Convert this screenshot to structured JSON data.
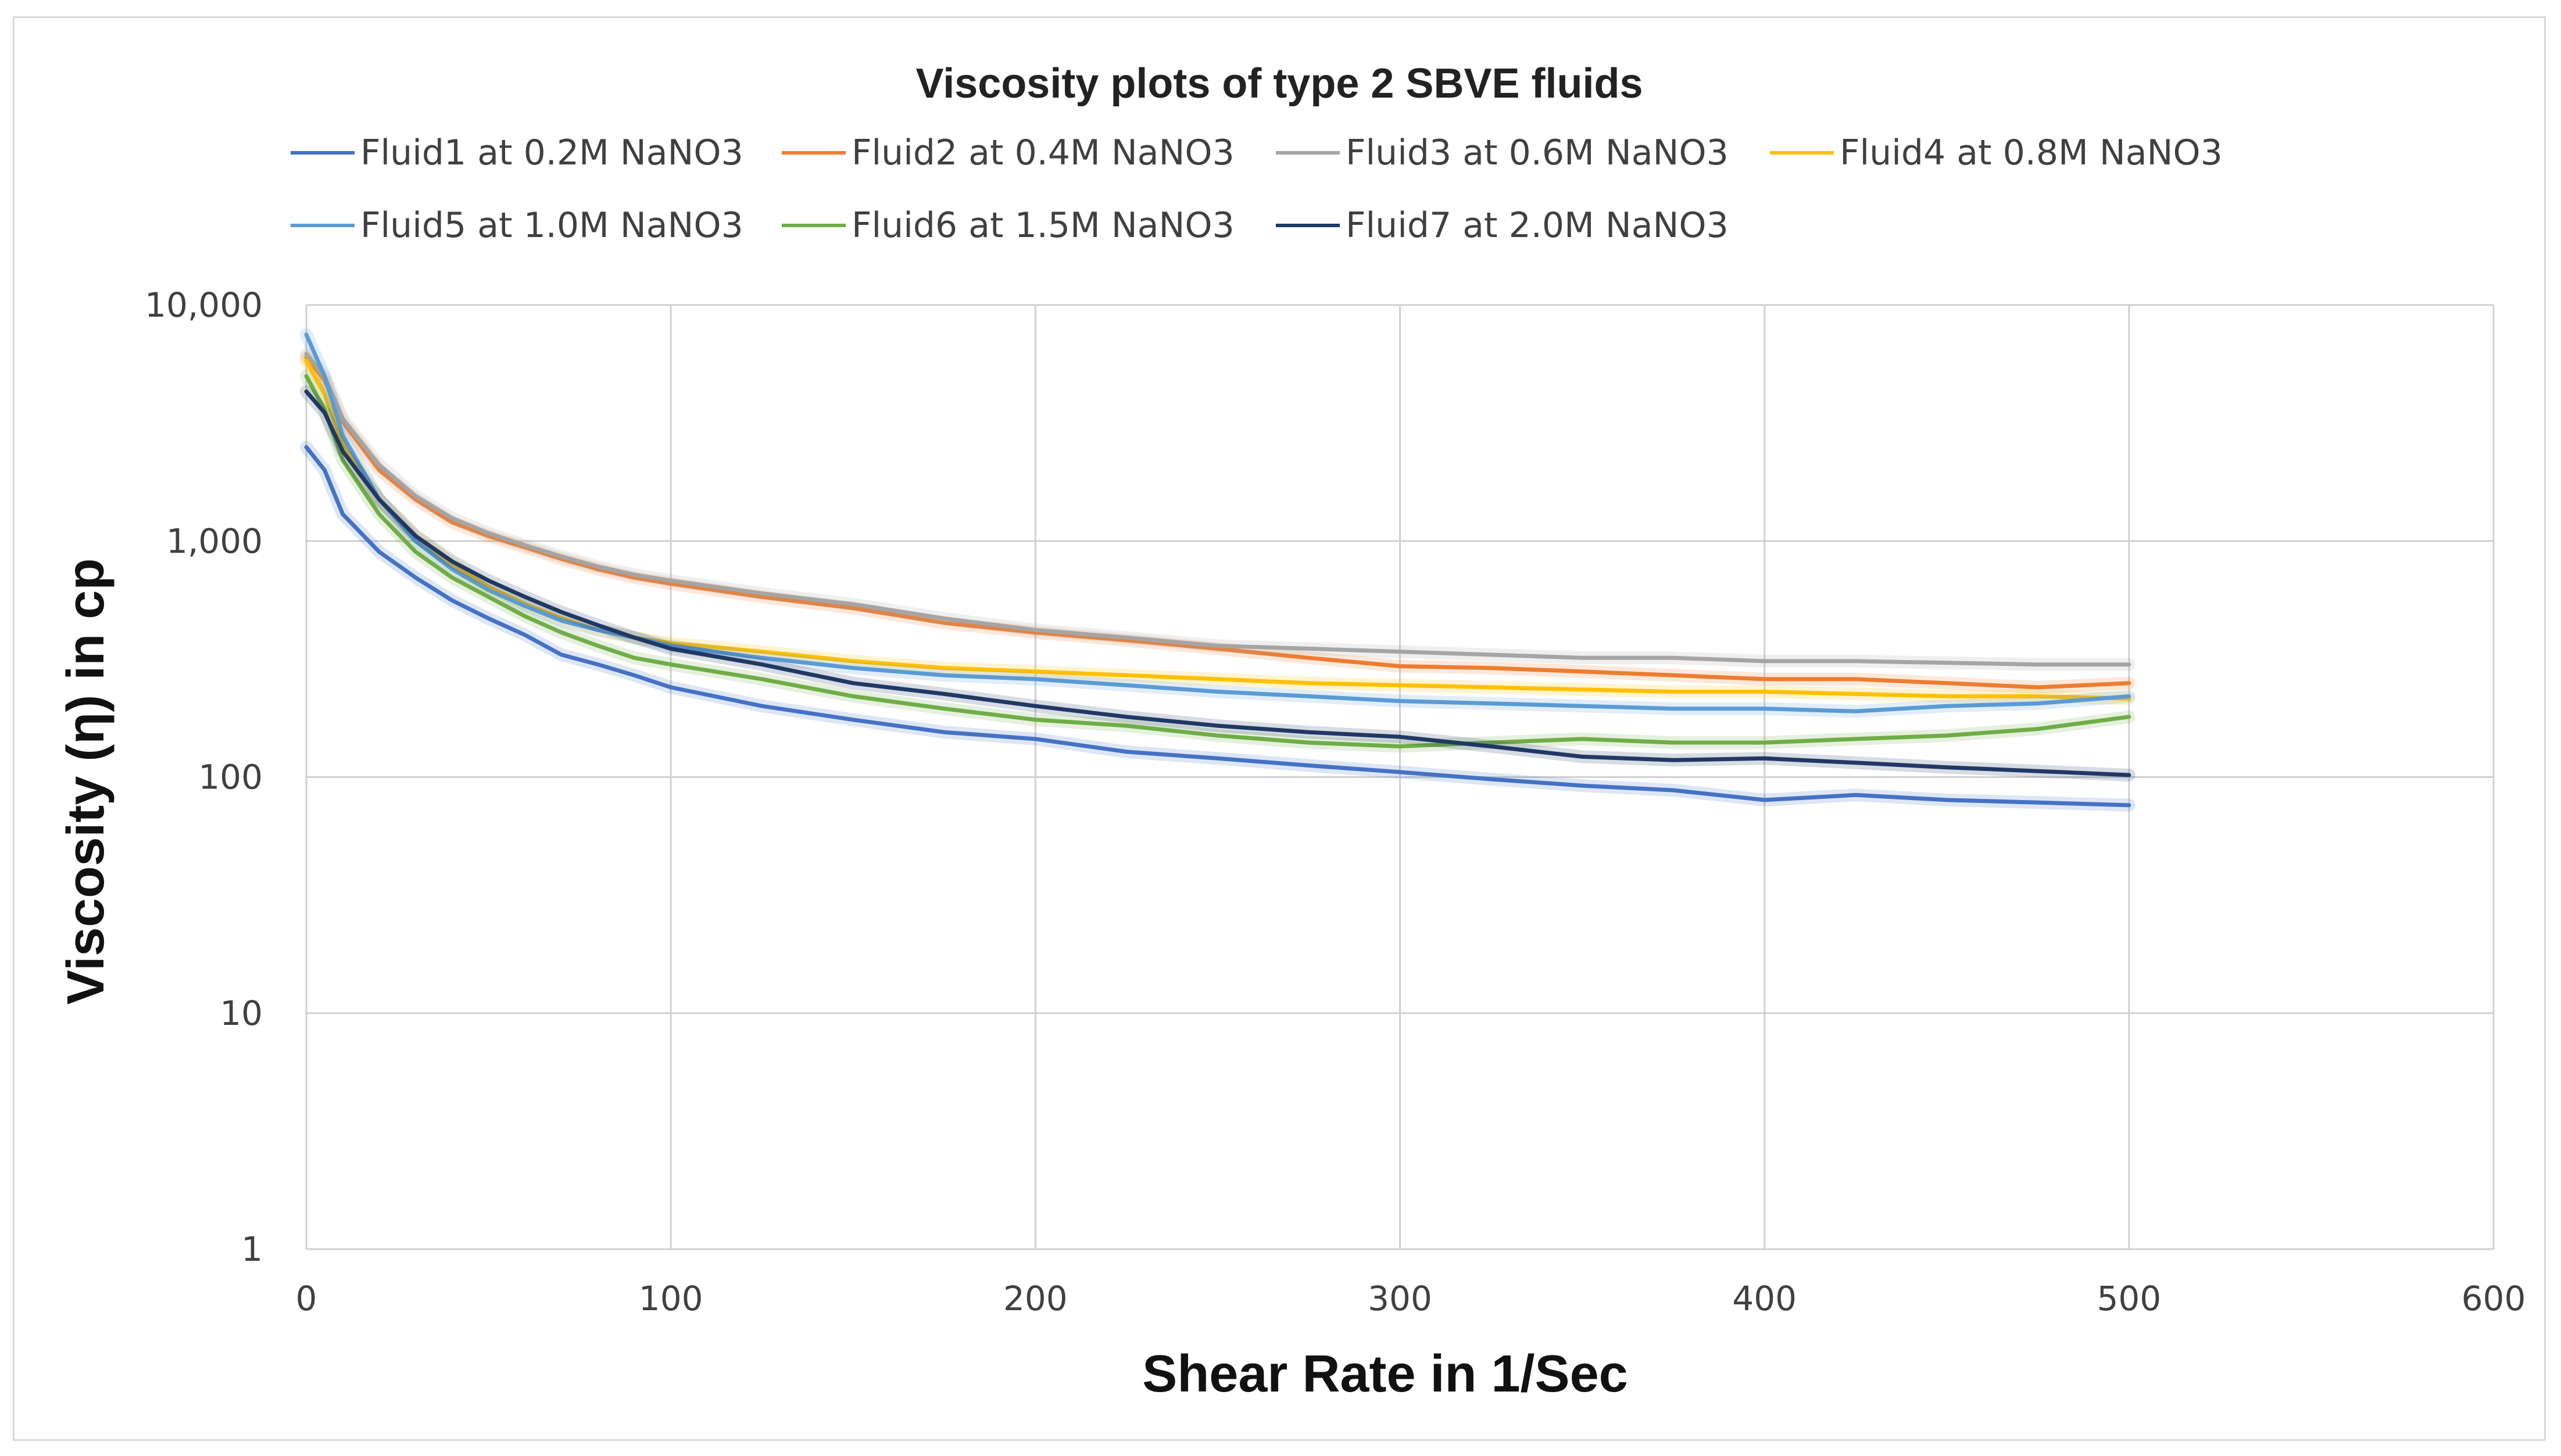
{
  "chart_data": {
    "type": "line",
    "title": "Viscosity plots of type 2 SBVE fluids",
    "xlabel": "Shear Rate in 1/Sec",
    "ylabel": "Viscosity (η) in cp",
    "xlim": [
      0,
      600
    ],
    "ylim": [
      1,
      10000
    ],
    "yscale": "log",
    "grid": true,
    "legend_position": "top",
    "x_ticks": [
      "0",
      "100",
      "200",
      "300",
      "400",
      "500",
      "600"
    ],
    "y_ticks": [
      "1",
      "10",
      "100",
      "1,000",
      "10,000"
    ],
    "y_tick_values": [
      1,
      10,
      100,
      1000,
      10000
    ],
    "x": [
      0,
      5,
      10,
      20,
      30,
      40,
      50,
      60,
      70,
      80,
      90,
      100,
      125,
      150,
      175,
      200,
      225,
      250,
      275,
      300,
      325,
      350,
      375,
      400,
      425,
      450,
      475,
      500
    ],
    "series": [
      {
        "name": "Fluid1 at 0.2M NaNO3",
        "color": "#4472c4",
        "values": [
          2500,
          2000,
          1300,
          900,
          700,
          560,
          470,
          400,
          330,
          300,
          270,
          240,
          200,
          175,
          155,
          145,
          128,
          120,
          112,
          105,
          98,
          92,
          88,
          80,
          84,
          80,
          78,
          76
        ]
      },
      {
        "name": "Fluid2 at 0.4M NaNO3",
        "color": "#ed7d31",
        "values": [
          6000,
          4800,
          3200,
          2000,
          1500,
          1200,
          1050,
          940,
          840,
          760,
          700,
          660,
          580,
          520,
          450,
          410,
          380,
          350,
          320,
          295,
          290,
          280,
          270,
          260,
          260,
          250,
          240,
          250
        ]
      },
      {
        "name": "Fluid3 at 0.6M NaNO3",
        "color": "#a5a5a5",
        "values": [
          6200,
          5000,
          3300,
          2100,
          1550,
          1250,
          1080,
          960,
          860,
          780,
          720,
          680,
          600,
          540,
          470,
          420,
          390,
          360,
          350,
          340,
          330,
          320,
          320,
          310,
          310,
          305,
          300,
          300
        ]
      },
      {
        "name": "Fluid4 at 0.8M NaNO3",
        "color": "#ffc000",
        "values": [
          5800,
          4200,
          2600,
          1500,
          1050,
          800,
          640,
          540,
          470,
          420,
          390,
          370,
          340,
          310,
          290,
          280,
          270,
          260,
          250,
          245,
          240,
          235,
          230,
          230,
          225,
          220,
          220,
          215
        ]
      },
      {
        "name": "Fluid5 at 1.0M NaNO3",
        "color": "#5b9bd5",
        "values": [
          7500,
          5000,
          2800,
          1500,
          1000,
          760,
          620,
          530,
          460,
          420,
          390,
          360,
          320,
          290,
          270,
          260,
          245,
          230,
          220,
          210,
          205,
          200,
          195,
          195,
          190,
          200,
          205,
          220
        ]
      },
      {
        "name": "Fluid6 at 1.5M NaNO3",
        "color": "#70ad47",
        "values": [
          5000,
          3600,
          2200,
          1300,
          900,
          700,
          580,
          480,
          410,
          360,
          320,
          300,
          260,
          220,
          195,
          175,
          165,
          150,
          140,
          135,
          140,
          145,
          140,
          140,
          145,
          150,
          160,
          180
        ]
      },
      {
        "name": "Fluid7 at 2.0M NaNO3",
        "color": "#203864",
        "values": [
          4300,
          3500,
          2400,
          1500,
          1050,
          820,
          680,
          580,
          500,
          440,
          390,
          350,
          300,
          250,
          225,
          200,
          180,
          165,
          155,
          148,
          135,
          122,
          118,
          120,
          115,
          110,
          106,
          102
        ]
      }
    ]
  }
}
